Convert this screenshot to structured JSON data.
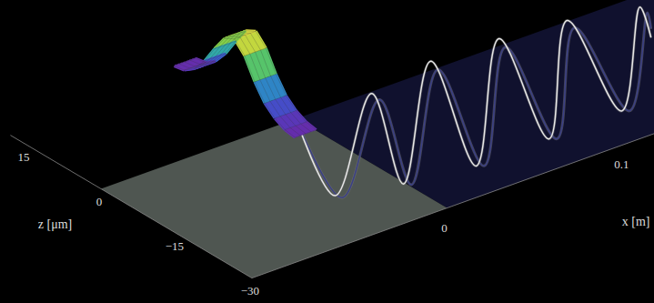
{
  "chart_data": {
    "type": "surface3d",
    "xlabel": "x [m]",
    "zlabel": "z [μm]",
    "xlim": [
      -0.11,
      0.2
    ],
    "zlim": [
      -30,
      18
    ],
    "xticks": [
      0,
      0.1
    ],
    "zticks": [
      15,
      0,
      {
        "value": -15,
        "label": "−15"
      },
      {
        "value": -30,
        "label": "−30"
      }
    ],
    "plate": {
      "x": [
        -0.11,
        0
      ],
      "z": [
        -30,
        0
      ],
      "color": "#4f5651"
    },
    "region": {
      "x": [
        0,
        0.2
      ],
      "z": [
        -30,
        0
      ],
      "color": "#10112e"
    },
    "gaussian": {
      "x": [
        -0.012,
        0
      ],
      "z": [
        -4,
        -2,
        0,
        2,
        4,
        6,
        8,
        10,
        12,
        14,
        16,
        18,
        20
      ],
      "y": [
        1,
        3,
        9,
        19,
        36,
        58,
        70,
        64,
        46,
        26,
        11,
        3,
        1
      ]
    },
    "series": [
      {
        "color": "#3a3f86",
        "x": [
          0,
          0.026,
          0.047,
          0.065,
          0.08,
          0.106,
          0.118,
          0.147,
          0.157,
          0.188,
          0.198,
          0.2
        ],
        "y": [
          0,
          -105,
          -12,
          -118,
          -2,
          -126,
          -4,
          -125,
          -10,
          -123,
          -22,
          -40
        ]
      },
      {
        "color": "#e8e8e8",
        "x": [
          0,
          0.022,
          0.0426,
          0.0605,
          0.0759,
          0.1015,
          0.1144,
          0.1426,
          0.1528,
          0.1836,
          0.1938,
          0.2
        ],
        "y": [
          0,
          -100,
          -2,
          -114,
          10,
          -123,
          8,
          -122,
          1,
          -120,
          -13,
          -50
        ]
      }
    ]
  }
}
